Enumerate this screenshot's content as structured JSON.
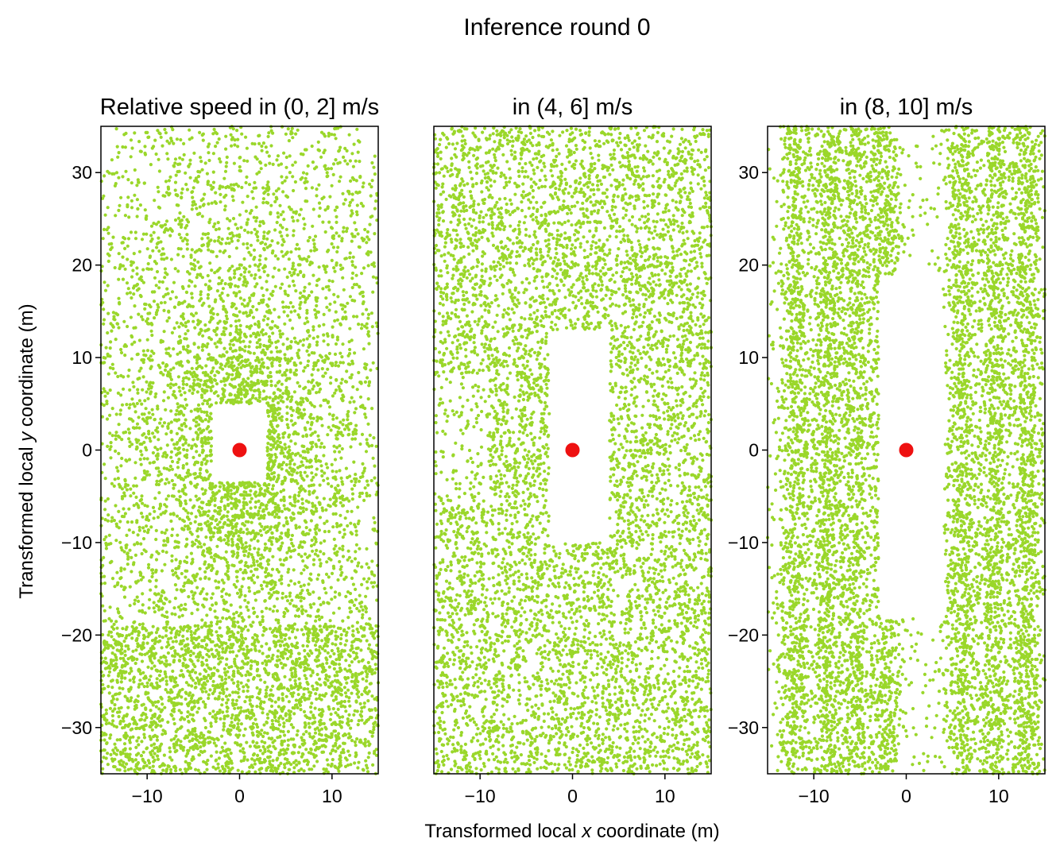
{
  "figure": {
    "suptitle": "Inference round 0",
    "xlabel_main": "Transformed local ",
    "xlabel_var": "x",
    "xlabel_tail": " coordinate (m)",
    "ylabel_main": "Transformed local ",
    "ylabel_var": "y",
    "ylabel_tail": " coordinate (m)"
  },
  "colors": {
    "points": "#9ad72a",
    "ego": "#ee1111",
    "axes": "#000000"
  },
  "chart_data": [
    {
      "type": "scatter",
      "title": "Relative speed in (0, 2] m/s",
      "xlim": [
        -15,
        15
      ],
      "ylim": [
        -35,
        35
      ],
      "xticks": [
        -10,
        0,
        10
      ],
      "yticks": [
        -30,
        -20,
        -10,
        0,
        10,
        20,
        30
      ],
      "grid": false,
      "pattern": "dense elliptical rings of trajectory points surrounding an empty region near the origin",
      "empty_region": {
        "x": [
          -3,
          3
        ],
        "y": [
          -3.5,
          5
        ]
      },
      "ego_point": {
        "x": 0,
        "y": 0
      }
    },
    {
      "type": "scatter",
      "title": "in (4, 6] m/s",
      "xlim": [
        -15,
        15
      ],
      "ylim": [
        -35,
        35
      ],
      "xticks": [
        -10,
        0,
        10
      ],
      "yticks": [],
      "grid": false,
      "pattern": "vertically elongated trajectory streaks with an empty region around the origin",
      "empty_region": {
        "x": [
          -2.5,
          4
        ],
        "y": [
          -10,
          13
        ]
      },
      "ego_point": {
        "x": 0,
        "y": 0
      }
    },
    {
      "type": "scatter",
      "title": "in (8, 10] m/s",
      "xlim": [
        -15,
        15
      ],
      "ylim": [
        -35,
        35
      ],
      "xticks": [
        -10,
        0,
        10
      ],
      "yticks": [
        -30,
        -20,
        -10,
        0,
        10,
        20,
        30
      ],
      "grid": false,
      "pattern": "vertical lane-like bands of trajectory points with an empty elongated region around the origin",
      "empty_region": {
        "x": [
          -3,
          4
        ],
        "y": [
          -18,
          19
        ]
      },
      "ego_point": {
        "x": 0,
        "y": 0
      }
    }
  ]
}
